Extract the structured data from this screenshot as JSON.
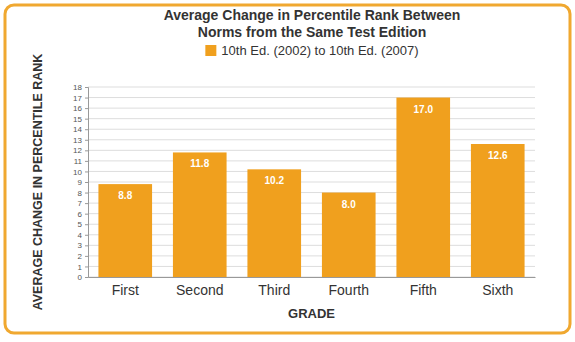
{
  "chart_data": {
    "type": "bar",
    "title": "Average Change in Percentile Rank Between Norms from the Same Test Edition",
    "x_label": "GRADE",
    "y_label": "AVERAGE CHANGE IN PERCENTILE RANK",
    "categories": [
      "First",
      "Second",
      "Third",
      "Fourth",
      "Fifth",
      "Sixth"
    ],
    "series": [
      {
        "name": "10th Ed. (2002) to 10th Ed. (2007)",
        "color": "#f0a01e",
        "values": [
          8.8,
          11.8,
          10.2,
          8.0,
          17.0,
          12.6
        ],
        "value_labels": [
          "8.8",
          "11.8",
          "10.2",
          "8.0",
          "17.0",
          "12.6"
        ]
      }
    ],
    "ylim": [
      0,
      18
    ],
    "yticks": [
      0,
      1,
      2,
      3,
      4,
      5,
      6,
      7,
      8,
      9,
      10,
      11,
      12,
      13,
      14,
      15,
      16,
      17,
      18
    ],
    "grid": true,
    "data_labels": true,
    "legend": "top"
  }
}
